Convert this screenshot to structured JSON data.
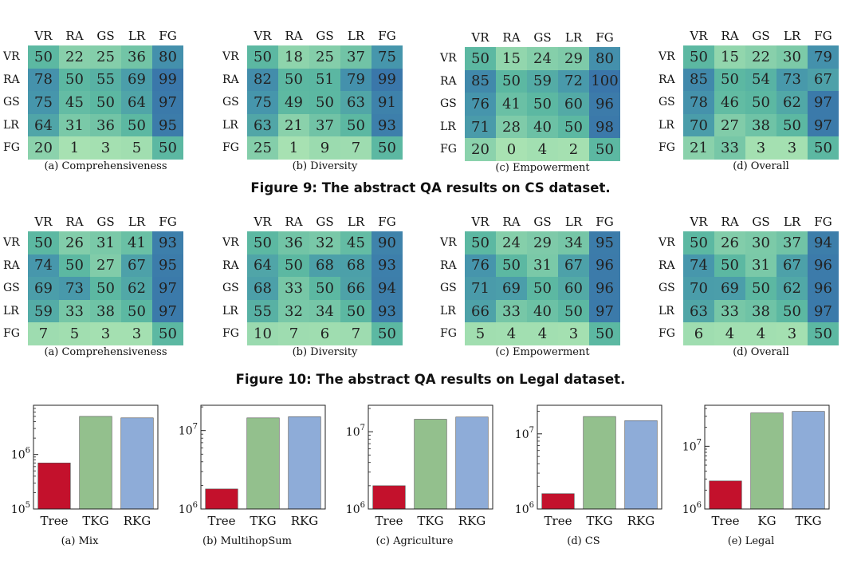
{
  "labels": [
    "VR",
    "RA",
    "GS",
    "LR",
    "FG"
  ],
  "figure9": {
    "caption": "Figure 9: The abstract QA results on CS dataset.",
    "panels": [
      {
        "caption": "(a) Comprehensiveness",
        "values": [
          [
            50,
            22,
            25,
            36,
            80
          ],
          [
            78,
            50,
            55,
            69,
            99
          ],
          [
            75,
            45,
            50,
            64,
            97
          ],
          [
            64,
            31,
            36,
            50,
            95
          ],
          [
            20,
            1,
            3,
            5,
            50
          ]
        ]
      },
      {
        "caption": "(b) Diversity",
        "values": [
          [
            50,
            18,
            25,
            37,
            75
          ],
          [
            82,
            50,
            51,
            79,
            99
          ],
          [
            75,
            49,
            50,
            63,
            91
          ],
          [
            63,
            21,
            37,
            50,
            93
          ],
          [
            25,
            1,
            9,
            7,
            50
          ]
        ]
      },
      {
        "caption": "(c) Empowerment",
        "values": [
          [
            50,
            15,
            24,
            29,
            80
          ],
          [
            85,
            50,
            59,
            72,
            100
          ],
          [
            76,
            41,
            50,
            60,
            96
          ],
          [
            71,
            28,
            40,
            50,
            98
          ],
          [
            20,
            0,
            4,
            2,
            50
          ]
        ]
      },
      {
        "caption": "(d) Overall",
        "values": [
          [
            50,
            15,
            22,
            30,
            79
          ],
          [
            85,
            50,
            54,
            73,
            67
          ],
          [
            78,
            46,
            50,
            62,
            97
          ],
          [
            70,
            27,
            38,
            50,
            97
          ],
          [
            21,
            33,
            3,
            3,
            50
          ]
        ]
      }
    ]
  },
  "figure10": {
    "caption": "Figure 10: The abstract QA results on Legal dataset.",
    "panels": [
      {
        "caption": "(a) Comprehensiveness",
        "values": [
          [
            50,
            26,
            31,
            41,
            93
          ],
          [
            74,
            50,
            27,
            67,
            95
          ],
          [
            69,
            73,
            50,
            62,
            97
          ],
          [
            59,
            33,
            38,
            50,
            97
          ],
          [
            7,
            5,
            3,
            3,
            50
          ]
        ]
      },
      {
        "caption": "(b) Diversity",
        "values": [
          [
            50,
            36,
            32,
            45,
            90
          ],
          [
            64,
            50,
            68,
            68,
            93
          ],
          [
            68,
            33,
            50,
            66,
            94
          ],
          [
            55,
            32,
            34,
            50,
            93
          ],
          [
            10,
            7,
            6,
            7,
            50
          ]
        ]
      },
      {
        "caption": "(c) Empowerment",
        "values": [
          [
            50,
            24,
            29,
            34,
            95
          ],
          [
            76,
            50,
            31,
            67,
            96
          ],
          [
            71,
            69,
            50,
            60,
            96
          ],
          [
            66,
            33,
            40,
            50,
            97
          ],
          [
            5,
            4,
            4,
            3,
            50
          ]
        ]
      },
      {
        "caption": "(d) Overall",
        "values": [
          [
            50,
            26,
            30,
            37,
            94
          ],
          [
            74,
            50,
            31,
            67,
            96
          ],
          [
            70,
            69,
            50,
            62,
            96
          ],
          [
            63,
            33,
            38,
            50,
            97
          ],
          [
            6,
            4,
            4,
            3,
            50
          ]
        ]
      }
    ]
  },
  "bar_colors": [
    "#c3112c",
    "#93c08d",
    "#8eacd8"
  ],
  "chart_data": [
    {
      "type": "bar",
      "title": "(a) Mix",
      "categories": [
        "Tree",
        "TKG",
        "RKG"
      ],
      "values": [
        700000,
        5000000,
        4700000
      ],
      "yscale": "log",
      "ylim": [
        100000,
        8000000
      ],
      "yticks": [
        {
          "v": 100000,
          "base": "10",
          "exp": "5"
        },
        {
          "v": 1000000,
          "base": "10",
          "exp": "6"
        }
      ]
    },
    {
      "type": "bar",
      "title": "(b) MultihopSum",
      "categories": [
        "Tree",
        "TKG",
        "RKG"
      ],
      "values": [
        1800000,
        14500000,
        15000000
      ],
      "yscale": "log",
      "ylim": [
        1000000,
        21000000
      ],
      "yticks": [
        {
          "v": 1000000,
          "base": "10",
          "exp": "6"
        },
        {
          "v": 10000000,
          "base": "10",
          "exp": "7"
        }
      ]
    },
    {
      "type": "bar",
      "title": "(c) Agriculture",
      "categories": [
        "Tree",
        "TKG",
        "RKG"
      ],
      "values": [
        2000000,
        14500000,
        15500000
      ],
      "yscale": "log",
      "ylim": [
        1000000,
        22000000
      ],
      "yticks": [
        {
          "v": 1000000,
          "base": "10",
          "exp": "6"
        },
        {
          "v": 10000000,
          "base": "10",
          "exp": "7"
        }
      ]
    },
    {
      "type": "bar",
      "title": "(d) CS",
      "categories": [
        "Tree",
        "TKG",
        "RKG"
      ],
      "values": [
        1600000,
        17000000,
        15000000
      ],
      "yscale": "log",
      "ylim": [
        1000000,
        24000000
      ],
      "yticks": [
        {
          "v": 1000000,
          "base": "10",
          "exp": "6"
        },
        {
          "v": 10000000,
          "base": "10",
          "exp": "7"
        }
      ]
    },
    {
      "type": "bar",
      "title": "(e) Legal",
      "categories": [
        "Tree",
        "KG",
        "TKG"
      ],
      "values": [
        2800000,
        34000000,
        36000000
      ],
      "yscale": "log",
      "ylim": [
        1000000,
        45000000
      ],
      "yticks": [
        {
          "v": 1000000,
          "base": "10",
          "exp": "6"
        },
        {
          "v": 10000000,
          "base": "10",
          "exp": "7"
        }
      ]
    }
  ]
}
